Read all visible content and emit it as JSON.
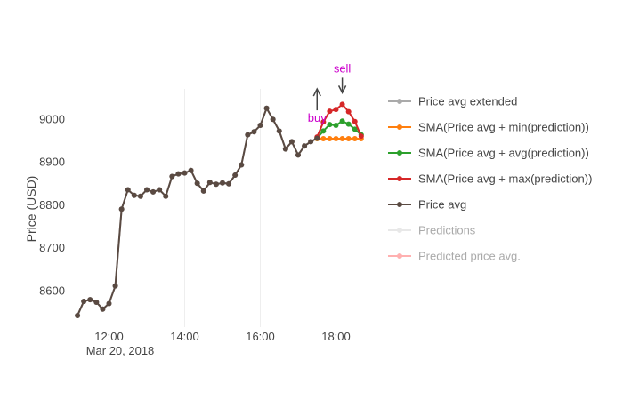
{
  "chart_data": {
    "type": "line",
    "ylabel": "Price (USD)",
    "x_ticks": [
      {
        "value": "2018-03-20 12:00",
        "label": "12:00"
      },
      {
        "value": "2018-03-20 14:00",
        "label": "14:00"
      },
      {
        "value": "2018-03-20 16:00",
        "label": "16:00"
      },
      {
        "value": "2018-03-20 18:00",
        "label": "18:00"
      }
    ],
    "x_date_label": "Mar 20, 2018",
    "y_ticks": [
      8600,
      8700,
      8800,
      8900,
      9000
    ],
    "xlim": [
      "2018-03-20 11:00",
      "2018-03-20 19:00"
    ],
    "ylim": [
      8515,
      9070
    ],
    "grid": "vertical",
    "legend_position": "right",
    "series": [
      {
        "name": "Price avg extended",
        "color": "#aaaaaa",
        "hidden": false,
        "x": [
          "2018-03-20 11:10",
          "2018-03-20 11:20",
          "2018-03-20 11:30",
          "2018-03-20 11:40",
          "2018-03-20 11:50",
          "2018-03-20 12:00",
          "2018-03-20 12:10",
          "2018-03-20 12:20",
          "2018-03-20 12:30",
          "2018-03-20 12:40",
          "2018-03-20 12:50",
          "2018-03-20 13:00",
          "2018-03-20 13:10",
          "2018-03-20 13:20",
          "2018-03-20 13:30",
          "2018-03-20 13:40",
          "2018-03-20 13:50",
          "2018-03-20 14:00",
          "2018-03-20 14:10",
          "2018-03-20 14:20",
          "2018-03-20 14:30",
          "2018-03-20 14:40",
          "2018-03-20 14:50",
          "2018-03-20 15:00",
          "2018-03-20 15:10",
          "2018-03-20 15:20",
          "2018-03-20 15:30",
          "2018-03-20 15:40",
          "2018-03-20 15:50",
          "2018-03-20 16:00",
          "2018-03-20 16:10",
          "2018-03-20 16:20",
          "2018-03-20 16:30",
          "2018-03-20 16:40",
          "2018-03-20 16:50",
          "2018-03-20 17:00",
          "2018-03-20 17:10",
          "2018-03-20 17:20",
          "2018-03-20 17:30"
        ],
        "values": [
          8542,
          8575,
          8579,
          8573,
          8557,
          8570,
          8611,
          8790,
          8835,
          8822,
          8820,
          8835,
          8830,
          8835,
          8820,
          8866,
          8872,
          8874,
          8880,
          8850,
          8832,
          8852,
          8848,
          8851,
          8849,
          8869,
          8893,
          8963,
          8970,
          8985,
          9025,
          8999,
          8972,
          8930,
          8947,
          8916,
          8937,
          8947,
          8955
        ]
      },
      {
        "name": "SMA(Price avg + min(prediction))",
        "color": "#ff7f0e",
        "hidden": false,
        "x": [
          "2018-03-20 17:30",
          "2018-03-20 17:40",
          "2018-03-20 17:50",
          "2018-03-20 18:00",
          "2018-03-20 18:10",
          "2018-03-20 18:20",
          "2018-03-20 18:30",
          "2018-03-20 18:40"
        ],
        "values": [
          8954,
          8954,
          8954,
          8954,
          8954,
          8954,
          8954,
          8954
        ]
      },
      {
        "name": "SMA(Price avg + avg(prediction))",
        "color": "#2ca02c",
        "hidden": false,
        "x": [
          "2018-03-20 17:30",
          "2018-03-20 17:40",
          "2018-03-20 17:50",
          "2018-03-20 18:00",
          "2018-03-20 18:10",
          "2018-03-20 18:20",
          "2018-03-20 18:30",
          "2018-03-20 18:40"
        ],
        "values": [
          8955,
          8972,
          8987,
          8985,
          8995,
          8988,
          8976,
          8963
        ]
      },
      {
        "name": "SMA(Price avg + max(prediction))",
        "color": "#d62728",
        "hidden": false,
        "x": [
          "2018-03-20 17:30",
          "2018-03-20 17:40",
          "2018-03-20 17:50",
          "2018-03-20 18:00",
          "2018-03-20 18:10",
          "2018-03-20 18:20",
          "2018-03-20 18:30",
          "2018-03-20 18:40"
        ],
        "values": [
          8958,
          8993,
          9018,
          9022,
          9034,
          9017,
          8994,
          8960
        ]
      },
      {
        "name": "Price avg",
        "color": "#5a4a42",
        "hidden": false,
        "x": [
          "2018-03-20 11:10",
          "2018-03-20 11:20",
          "2018-03-20 11:30",
          "2018-03-20 11:40",
          "2018-03-20 11:50",
          "2018-03-20 12:00",
          "2018-03-20 12:10",
          "2018-03-20 12:20",
          "2018-03-20 12:30",
          "2018-03-20 12:40",
          "2018-03-20 12:50",
          "2018-03-20 13:00",
          "2018-03-20 13:10",
          "2018-03-20 13:20",
          "2018-03-20 13:30",
          "2018-03-20 13:40",
          "2018-03-20 13:50",
          "2018-03-20 14:00",
          "2018-03-20 14:10",
          "2018-03-20 14:20",
          "2018-03-20 14:30",
          "2018-03-20 14:40",
          "2018-03-20 14:50",
          "2018-03-20 15:00",
          "2018-03-20 15:10",
          "2018-03-20 15:20",
          "2018-03-20 15:30",
          "2018-03-20 15:40",
          "2018-03-20 15:50",
          "2018-03-20 16:00",
          "2018-03-20 16:10",
          "2018-03-20 16:20",
          "2018-03-20 16:30",
          "2018-03-20 16:40",
          "2018-03-20 16:50",
          "2018-03-20 17:00",
          "2018-03-20 17:10",
          "2018-03-20 17:20",
          "2018-03-20 17:30"
        ],
        "values": [
          8542,
          8575,
          8579,
          8573,
          8557,
          8570,
          8611,
          8790,
          8835,
          8822,
          8820,
          8835,
          8830,
          8835,
          8820,
          8866,
          8872,
          8874,
          8880,
          8850,
          8832,
          8852,
          8848,
          8851,
          8849,
          8869,
          8893,
          8963,
          8970,
          8985,
          9025,
          8999,
          8972,
          8930,
          8947,
          8916,
          8937,
          8947,
          8955
        ]
      },
      {
        "name": "Predictions",
        "color": "#e8e8e8",
        "hidden": true,
        "x": [],
        "values": []
      },
      {
        "name": "Predicted price avg.",
        "color": "#ffb0b0",
        "hidden": true,
        "x": [],
        "values": []
      }
    ],
    "annotations": [
      {
        "text": "buy",
        "x": "2018-03-20 17:30",
        "y": 8958,
        "color": "#cc00cc",
        "arrow": "up"
      },
      {
        "text": "sell",
        "x": "2018-03-20 18:10",
        "y": 9034,
        "color": "#cc00cc",
        "arrow": "down"
      }
    ]
  }
}
